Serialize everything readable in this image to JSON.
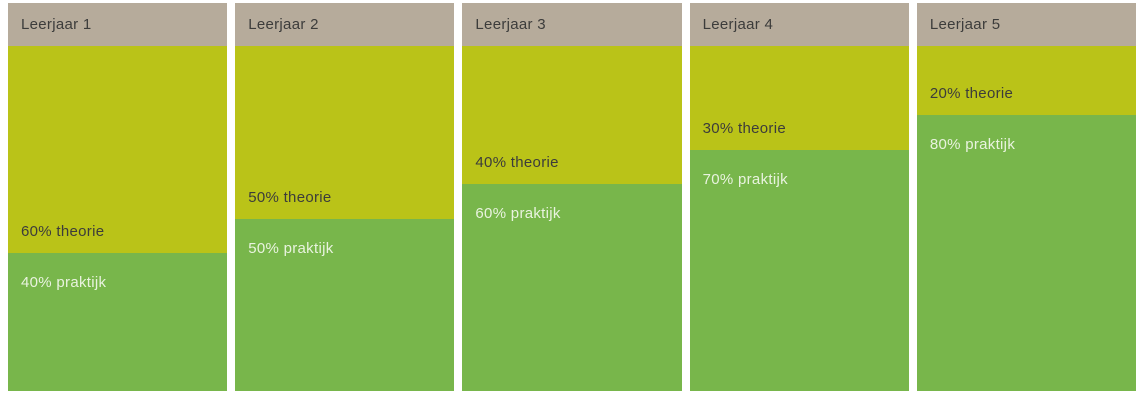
{
  "chart_data": {
    "type": "bar",
    "variant": "100-percent-stacked-columns",
    "title": "",
    "categories": [
      "Leerjaar 1",
      "Leerjaar 2",
      "Leerjaar 3",
      "Leerjaar 4",
      "Leerjaar 5"
    ],
    "series": [
      {
        "name": "theorie",
        "values": [
          60,
          50,
          40,
          30,
          20
        ],
        "color": "#bac318",
        "label_color": "#3c3c3b"
      },
      {
        "name": "praktijk",
        "values": [
          40,
          50,
          60,
          70,
          80
        ],
        "color": "#78b64b",
        "label_color": "#e9f3df"
      }
    ],
    "value_unit": "%",
    "ylim": [
      0,
      100
    ],
    "grid": false,
    "legend_position": "none",
    "category_header_color": "#b6ab9b",
    "data_labels": true
  },
  "columns": [
    {
      "header": "Leerjaar 1",
      "theorie_pct": 60,
      "praktijk_pct": 40,
      "theorie_label": "60% theorie",
      "praktijk_label": "40% praktijk"
    },
    {
      "header": "Leerjaar 2",
      "theorie_pct": 50,
      "praktijk_pct": 50,
      "theorie_label": "50% theorie",
      "praktijk_label": "50% praktijk"
    },
    {
      "header": "Leerjaar 3",
      "theorie_pct": 40,
      "praktijk_pct": 60,
      "theorie_label": "40% theorie",
      "praktijk_label": "60% praktijk"
    },
    {
      "header": "Leerjaar 4",
      "theorie_pct": 30,
      "praktijk_pct": 70,
      "theorie_label": "30% theorie",
      "praktijk_label": "70% praktijk"
    },
    {
      "header": "Leerjaar 5",
      "theorie_pct": 20,
      "praktijk_pct": 80,
      "theorie_label": "20% theorie",
      "praktijk_label": "80% praktijk"
    }
  ]
}
